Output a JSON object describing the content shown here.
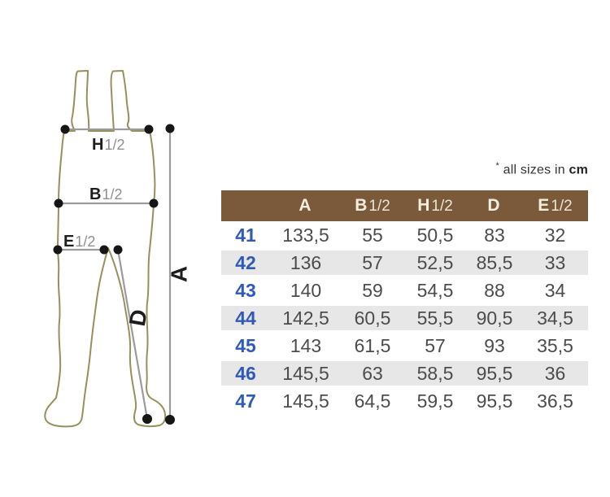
{
  "note": {
    "asterisk": "*",
    "text": "all sizes in",
    "unit": "cm"
  },
  "diagram": {
    "labels": {
      "h": {
        "letter": "H",
        "fraction": "1/2"
      },
      "b": {
        "letter": "B",
        "fraction": "1/2"
      },
      "e": {
        "letter": "E",
        "fraction": "1/2"
      },
      "a": "A",
      "d": "D"
    },
    "colors": {
      "outline": "#96915c",
      "measure_line": "#9b9b9b",
      "dot": "#161616",
      "letter": "#1d1d1d",
      "fraction": "#8f8f8f"
    }
  },
  "table": {
    "header": [
      {
        "letter": "A",
        "fraction": ""
      },
      {
        "letter": "B",
        "fraction": "1/2"
      },
      {
        "letter": "H",
        "fraction": "1/2"
      },
      {
        "letter": "D",
        "fraction": ""
      },
      {
        "letter": "E",
        "fraction": "1/2"
      }
    ],
    "rows": [
      {
        "size": "41",
        "values": [
          "133,5",
          "55",
          "50,5",
          "83",
          "32"
        ]
      },
      {
        "size": "42",
        "values": [
          "136",
          "57",
          "52,5",
          "85,5",
          "33"
        ]
      },
      {
        "size": "43",
        "values": [
          "140",
          "59",
          "54,5",
          "88",
          "34"
        ]
      },
      {
        "size": "44",
        "values": [
          "142,5",
          "60,5",
          "55,5",
          "90,5",
          "34,5"
        ]
      },
      {
        "size": "45",
        "values": [
          "143",
          "61,5",
          "57",
          "93",
          "35,5"
        ]
      },
      {
        "size": "46",
        "values": [
          "145,5",
          "63",
          "58,5",
          "95,5",
          "36"
        ]
      },
      {
        "size": "47",
        "values": [
          "145,5",
          "64,5",
          "59,5",
          "95,5",
          "36,5"
        ]
      }
    ],
    "colors": {
      "header_bg": "#7b5a3b",
      "header_text": "#f2eddc",
      "size_text": "#2f5ab8",
      "value_text": "#4c4c4c",
      "row_alt_bg": "#e7e7e7"
    }
  }
}
